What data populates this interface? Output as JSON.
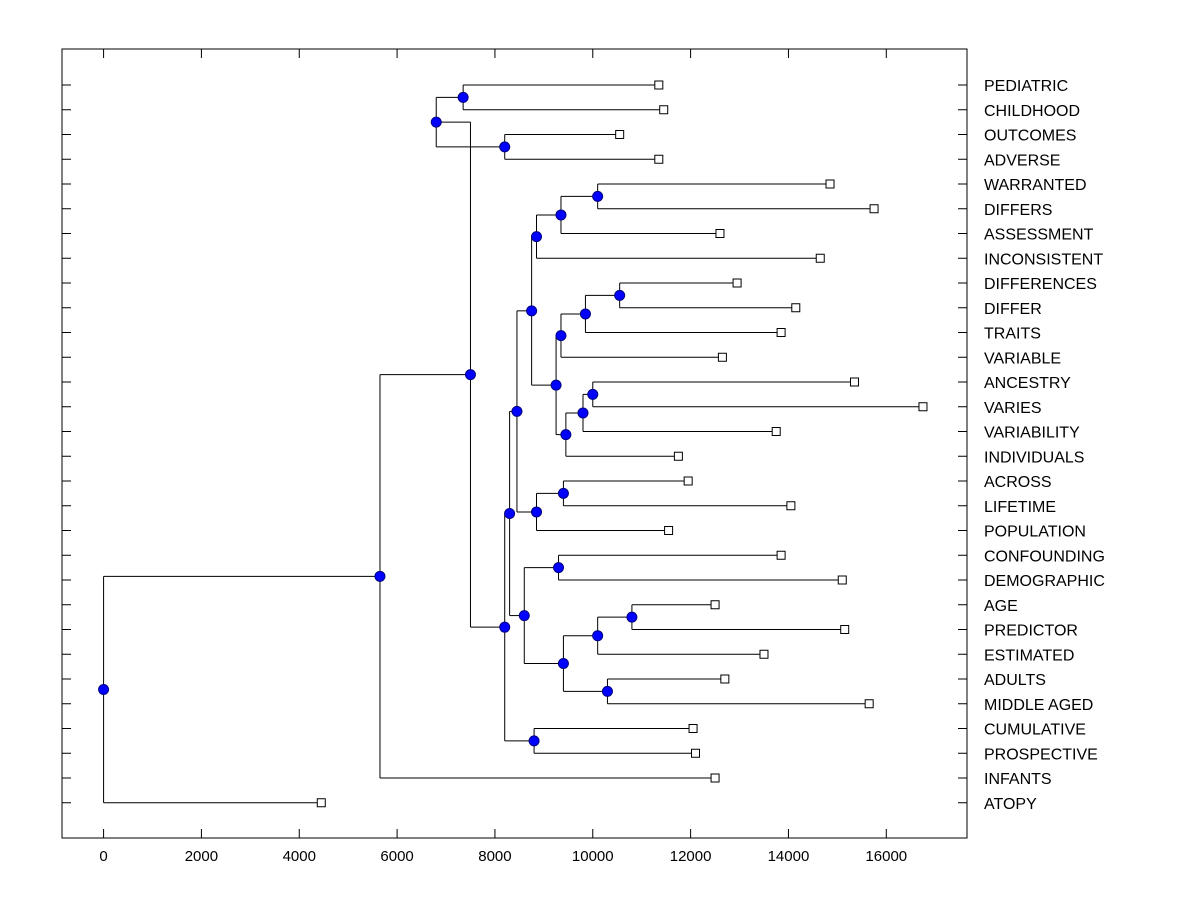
{
  "chart_data": {
    "type": "dendrogram",
    "xlim": [
      -850,
      17650
    ],
    "x_ticks": [
      0,
      2000,
      4000,
      6000,
      8000,
      10000,
      12000,
      14000,
      16000
    ],
    "x_tick_labels": [
      "0",
      "2000",
      "4000",
      "6000",
      "8000",
      "10000",
      "12000",
      "14000",
      "16000"
    ],
    "leaves": [
      {
        "label": "PEDIATRIC",
        "x": 11350
      },
      {
        "label": "CHILDHOOD",
        "x": 11450
      },
      {
        "label": "OUTCOMES",
        "x": 10550
      },
      {
        "label": "ADVERSE",
        "x": 11350
      },
      {
        "label": "WARRANTED",
        "x": 14850
      },
      {
        "label": "DIFFERS",
        "x": 15750
      },
      {
        "label": "ASSESSMENT",
        "x": 12600
      },
      {
        "label": "INCONSISTENT",
        "x": 14650
      },
      {
        "label": "DIFFERENCES",
        "x": 12950
      },
      {
        "label": "DIFFER",
        "x": 14150
      },
      {
        "label": "TRAITS",
        "x": 13850
      },
      {
        "label": "VARIABLE",
        "x": 12650
      },
      {
        "label": "ANCESTRY",
        "x": 15350
      },
      {
        "label": "VARIES",
        "x": 16750
      },
      {
        "label": "VARIABILITY",
        "x": 13750
      },
      {
        "label": "INDIVIDUALS",
        "x": 11750
      },
      {
        "label": "ACROSS",
        "x": 11950
      },
      {
        "label": "LIFETIME",
        "x": 14050
      },
      {
        "label": "POPULATION",
        "x": 11550
      },
      {
        "label": "CONFOUNDING",
        "x": 13850
      },
      {
        "label": "DEMOGRAPHIC",
        "x": 15100
      },
      {
        "label": "AGE",
        "x": 12500
      },
      {
        "label": "PREDICTOR",
        "x": 15150
      },
      {
        "label": "ESTIMATED",
        "x": 13500
      },
      {
        "label": "ADULTS",
        "x": 12700
      },
      {
        "label": "MIDDLE AGED",
        "x": 15650
      },
      {
        "label": "CUMULATIVE",
        "x": 12050
      },
      {
        "label": "PROSPECTIVE",
        "x": 12100
      },
      {
        "label": "INFANTS",
        "x": 12500
      },
      {
        "label": "ATOPY",
        "x": 4450
      }
    ],
    "merges": [
      {
        "id": "n1",
        "x": 7350,
        "children": [
          0,
          1
        ]
      },
      {
        "id": "n2",
        "x": 8200,
        "children": [
          2,
          3
        ]
      },
      {
        "id": "n3",
        "x": 6800,
        "children": [
          "n1",
          "n2"
        ]
      },
      {
        "id": "n4",
        "x": 10100,
        "children": [
          4,
          5
        ]
      },
      {
        "id": "n5",
        "x": 9350,
        "children": [
          "n4",
          6
        ]
      },
      {
        "id": "n6",
        "x": 8850,
        "children": [
          "n5",
          7
        ]
      },
      {
        "id": "n7",
        "x": 10550,
        "children": [
          8,
          9
        ]
      },
      {
        "id": "n8",
        "x": 9850,
        "children": [
          "n7",
          10
        ]
      },
      {
        "id": "n9",
        "x": 9350,
        "children": [
          "n8",
          11
        ]
      },
      {
        "id": "n10",
        "x": 10000,
        "children": [
          12,
          13
        ]
      },
      {
        "id": "n11",
        "x": 9800,
        "children": [
          "n10",
          14
        ]
      },
      {
        "id": "n12",
        "x": 9450,
        "children": [
          "n11",
          15
        ]
      },
      {
        "id": "n13",
        "x": 9250,
        "children": [
          "n9",
          "n12"
        ]
      },
      {
        "id": "n14",
        "x": 8750,
        "children": [
          "n6",
          "n13"
        ]
      },
      {
        "id": "n15",
        "x": 9400,
        "children": [
          16,
          17
        ]
      },
      {
        "id": "n16",
        "x": 8850,
        "children": [
          "n15",
          18
        ]
      },
      {
        "id": "n17",
        "x": 8450,
        "children": [
          "n14",
          "n16"
        ]
      },
      {
        "id": "n18",
        "x": 9300,
        "children": [
          19,
          20
        ]
      },
      {
        "id": "n19",
        "x": 10800,
        "children": [
          21,
          22
        ]
      },
      {
        "id": "n20",
        "x": 10100,
        "children": [
          "n19",
          23
        ]
      },
      {
        "id": "n21",
        "x": 10300,
        "children": [
          24,
          25
        ]
      },
      {
        "id": "n22",
        "x": 9400,
        "children": [
          "n20",
          "n21"
        ]
      },
      {
        "id": "n23",
        "x": 8600,
        "children": [
          "n18",
          "n22"
        ]
      },
      {
        "id": "n24",
        "x": 8300,
        "children": [
          "n17",
          "n23"
        ]
      },
      {
        "id": "n25",
        "x": 8800,
        "children": [
          26,
          27
        ]
      },
      {
        "id": "n26",
        "x": 8200,
        "children": [
          "n24",
          "n25"
        ]
      },
      {
        "id": "n27",
        "x": 7500,
        "children": [
          "n3",
          "n26"
        ]
      },
      {
        "id": "n28",
        "x": 5650,
        "children": [
          "n27",
          28
        ]
      },
      {
        "id": "n29",
        "x": 0,
        "children": [
          "n28",
          29
        ]
      }
    ],
    "colors": {
      "node": "#0000ff",
      "node_stroke": "#000080",
      "leaf_fill": "#ffffff",
      "line": "#000000"
    }
  }
}
